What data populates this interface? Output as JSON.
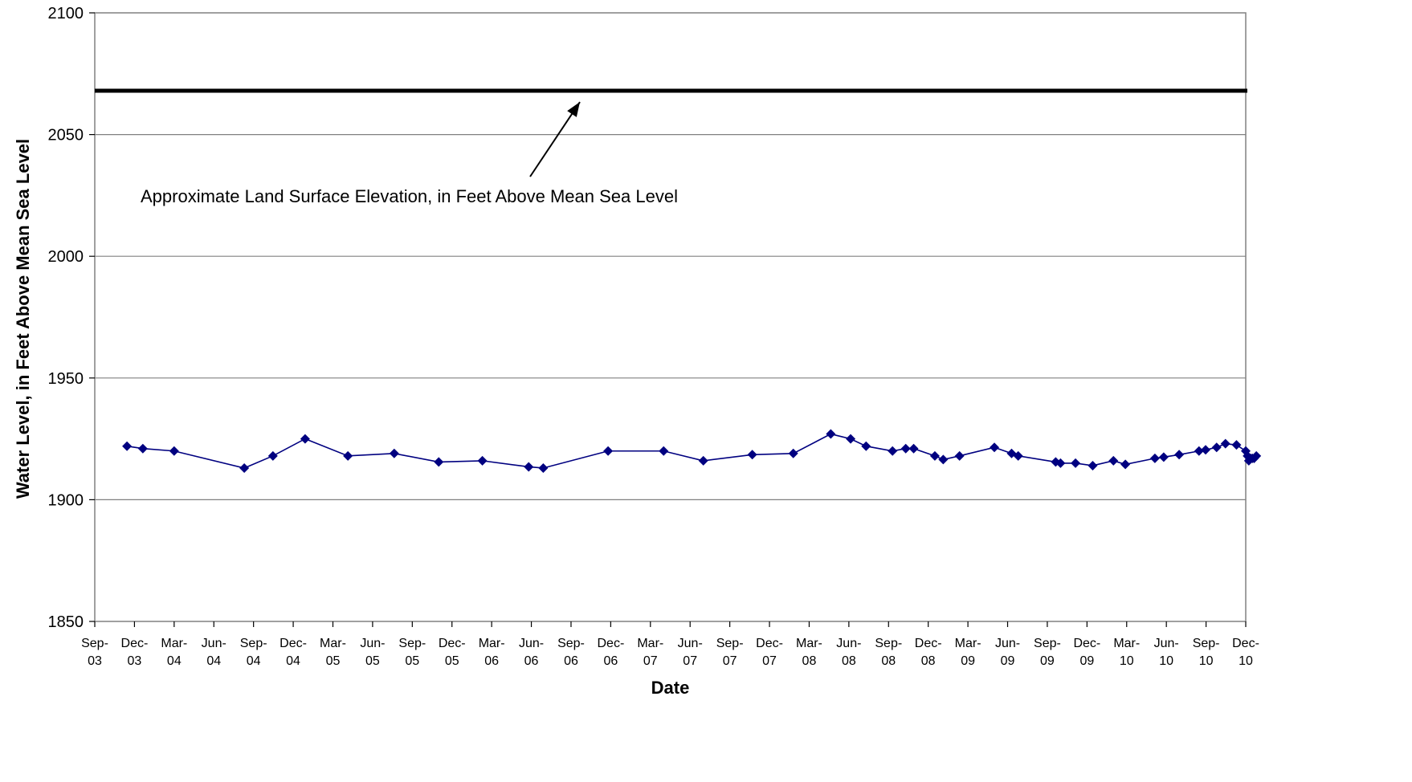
{
  "chart_data": {
    "type": "line",
    "xlabel": "Date",
    "ylabel": "Water Level, in Feet Above Mean Sea Level",
    "ylim": [
      1850,
      2100
    ],
    "yticks": [
      1850,
      1900,
      1950,
      2000,
      2050,
      2100
    ],
    "xlim": [
      "2003-09",
      "2010-12"
    ],
    "xtick_labels": [
      [
        "Sep-",
        "03"
      ],
      [
        "Dec-",
        "03"
      ],
      [
        "Mar-",
        "04"
      ],
      [
        "Jun-",
        "04"
      ],
      [
        "Sep-",
        "04"
      ],
      [
        "Dec-",
        "04"
      ],
      [
        "Mar-",
        "05"
      ],
      [
        "Jun-",
        "05"
      ],
      [
        "Sep-",
        "05"
      ],
      [
        "Dec-",
        "05"
      ],
      [
        "Mar-",
        "06"
      ],
      [
        "Jun-",
        "06"
      ],
      [
        "Sep-",
        "06"
      ],
      [
        "Dec-",
        "06"
      ],
      [
        "Mar-",
        "07"
      ],
      [
        "Jun-",
        "07"
      ],
      [
        "Sep-",
        "07"
      ],
      [
        "Dec-",
        "07"
      ],
      [
        "Mar-",
        "08"
      ],
      [
        "Jun-",
        "08"
      ],
      [
        "Sep-",
        "08"
      ],
      [
        "Dec-",
        "08"
      ],
      [
        "Mar-",
        "09"
      ],
      [
        "Jun-",
        "09"
      ],
      [
        "Sep-",
        "09"
      ],
      [
        "Dec-",
        "09"
      ],
      [
        "Mar-",
        "10"
      ],
      [
        "Jun-",
        "10"
      ],
      [
        "Sep-",
        "10"
      ],
      [
        "Dec-",
        "10"
      ]
    ],
    "grid": "horizontal",
    "land_surface_elevation": 2068,
    "annotation": "Approximate Land Surface Elevation, in Feet Above Mean Sea Level",
    "colors": {
      "series": "#000080",
      "reference_line": "#000000",
      "grid": "#808080"
    },
    "series": [
      {
        "points": [
          [
            "2003-11-14",
            1922
          ],
          [
            "2003-12-20",
            1921
          ],
          [
            "2004-03-01",
            1920
          ],
          [
            "2004-08-10",
            1913
          ],
          [
            "2004-10-15",
            1918
          ],
          [
            "2004-12-28",
            1925
          ],
          [
            "2005-04-05",
            1918
          ],
          [
            "2005-07-20",
            1919
          ],
          [
            "2005-11-01",
            1915.5
          ],
          [
            "2006-02-10",
            1916
          ],
          [
            "2006-05-25",
            1913.5
          ],
          [
            "2006-06-28",
            1913
          ],
          [
            "2006-11-25",
            1920
          ],
          [
            "2007-04-01",
            1920
          ],
          [
            "2007-07-01",
            1916
          ],
          [
            "2007-10-22",
            1918.5
          ],
          [
            "2008-01-25",
            1919
          ],
          [
            "2008-04-20",
            1927
          ],
          [
            "2008-06-05",
            1925
          ],
          [
            "2008-07-10",
            1922
          ],
          [
            "2008-09-10",
            1920
          ],
          [
            "2008-10-10",
            1921
          ],
          [
            "2008-10-28",
            1921
          ],
          [
            "2008-12-16",
            1918
          ],
          [
            "2009-01-05",
            1916.5
          ],
          [
            "2009-02-12",
            1918
          ],
          [
            "2009-05-01",
            1921.5
          ],
          [
            "2009-06-10",
            1919
          ],
          [
            "2009-06-25",
            1918
          ],
          [
            "2009-09-20",
            1915.5
          ],
          [
            "2009-10-01",
            1915
          ],
          [
            "2009-11-05",
            1915
          ],
          [
            "2009-12-14",
            1914
          ],
          [
            "2010-02-01",
            1916
          ],
          [
            "2010-02-28",
            1914.5
          ],
          [
            "2010-05-05",
            1917
          ],
          [
            "2010-05-25",
            1917.5
          ],
          [
            "2010-06-30",
            1918.5
          ],
          [
            "2010-08-15",
            1920
          ],
          [
            "2010-08-30",
            1920.5
          ],
          [
            "2010-09-25",
            1921.5
          ],
          [
            "2010-10-15",
            1923
          ],
          [
            "2010-11-10",
            1922.5
          ],
          [
            "2010-12-01",
            1920
          ],
          [
            "2010-12-05",
            1918
          ],
          [
            "2010-12-08",
            1916
          ],
          [
            "2010-12-12",
            1917
          ],
          [
            "2010-12-16",
            1917
          ],
          [
            "2010-12-20",
            1917
          ],
          [
            "2010-12-25",
            1918
          ]
        ]
      }
    ]
  }
}
